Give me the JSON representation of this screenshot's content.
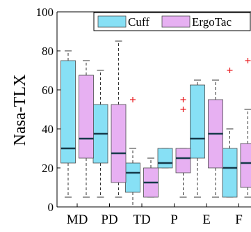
{
  "chart_data": {
    "type": "box",
    "title": "",
    "xlabel": "",
    "ylabel": "Nasa-TLX",
    "ylim": [
      0,
      100
    ],
    "yticks": [
      0,
      20,
      40,
      60,
      80,
      100
    ],
    "grid": false,
    "legend_position": "top-right",
    "categories": [
      "MD",
      "PD",
      "TD",
      "P",
      "E",
      "F"
    ],
    "series": [
      {
        "name": "Cuff",
        "color": "#87e0f5",
        "boxes": [
          {
            "min": 5,
            "q1": 22.5,
            "median": 30,
            "q3": 75,
            "max": 80,
            "outliers": []
          },
          {
            "min": 5,
            "q1": 22.5,
            "median": 37.5,
            "q3": 52.5,
            "max": 70,
            "outliers": []
          },
          {
            "min": 0,
            "q1": 7.5,
            "median": 17.5,
            "q3": 22.5,
            "max": 30,
            "outliers": [
              55
            ]
          },
          {
            "min": 20,
            "q1": 20,
            "median": 22.5,
            "q3": 30,
            "max": 30,
            "outliers": []
          },
          {
            "min": 5,
            "q1": 25,
            "median": 35,
            "q3": 62.5,
            "max": 65,
            "outliers": []
          },
          {
            "min": 5,
            "q1": 5,
            "median": 20,
            "q3": 30,
            "max": 40,
            "outliers": [
              70
            ]
          }
        ]
      },
      {
        "name": "ErgoTac",
        "color": "#e7b0f2",
        "boxes": [
          {
            "min": 5,
            "q1": 25,
            "median": 35,
            "q3": 67.5,
            "max": 75,
            "outliers": []
          },
          {
            "min": 5,
            "q1": 12.5,
            "median": 27.5,
            "q3": 52.5,
            "max": 85,
            "outliers": []
          },
          {
            "min": 5,
            "q1": 5,
            "median": 12.5,
            "q3": 20,
            "max": 25,
            "outliers": []
          },
          {
            "min": 5,
            "q1": 17.5,
            "median": 25,
            "q3": 30,
            "max": 30,
            "outliers": [
              50,
              55
            ]
          },
          {
            "min": 5,
            "q1": 20,
            "median": 37.5,
            "q3": 55,
            "max": 65,
            "outliers": []
          },
          {
            "min": 5,
            "q1": 10,
            "median": 22.5,
            "q3": 32.5,
            "max": 50,
            "outliers": [
              75
            ]
          }
        ]
      }
    ]
  }
}
